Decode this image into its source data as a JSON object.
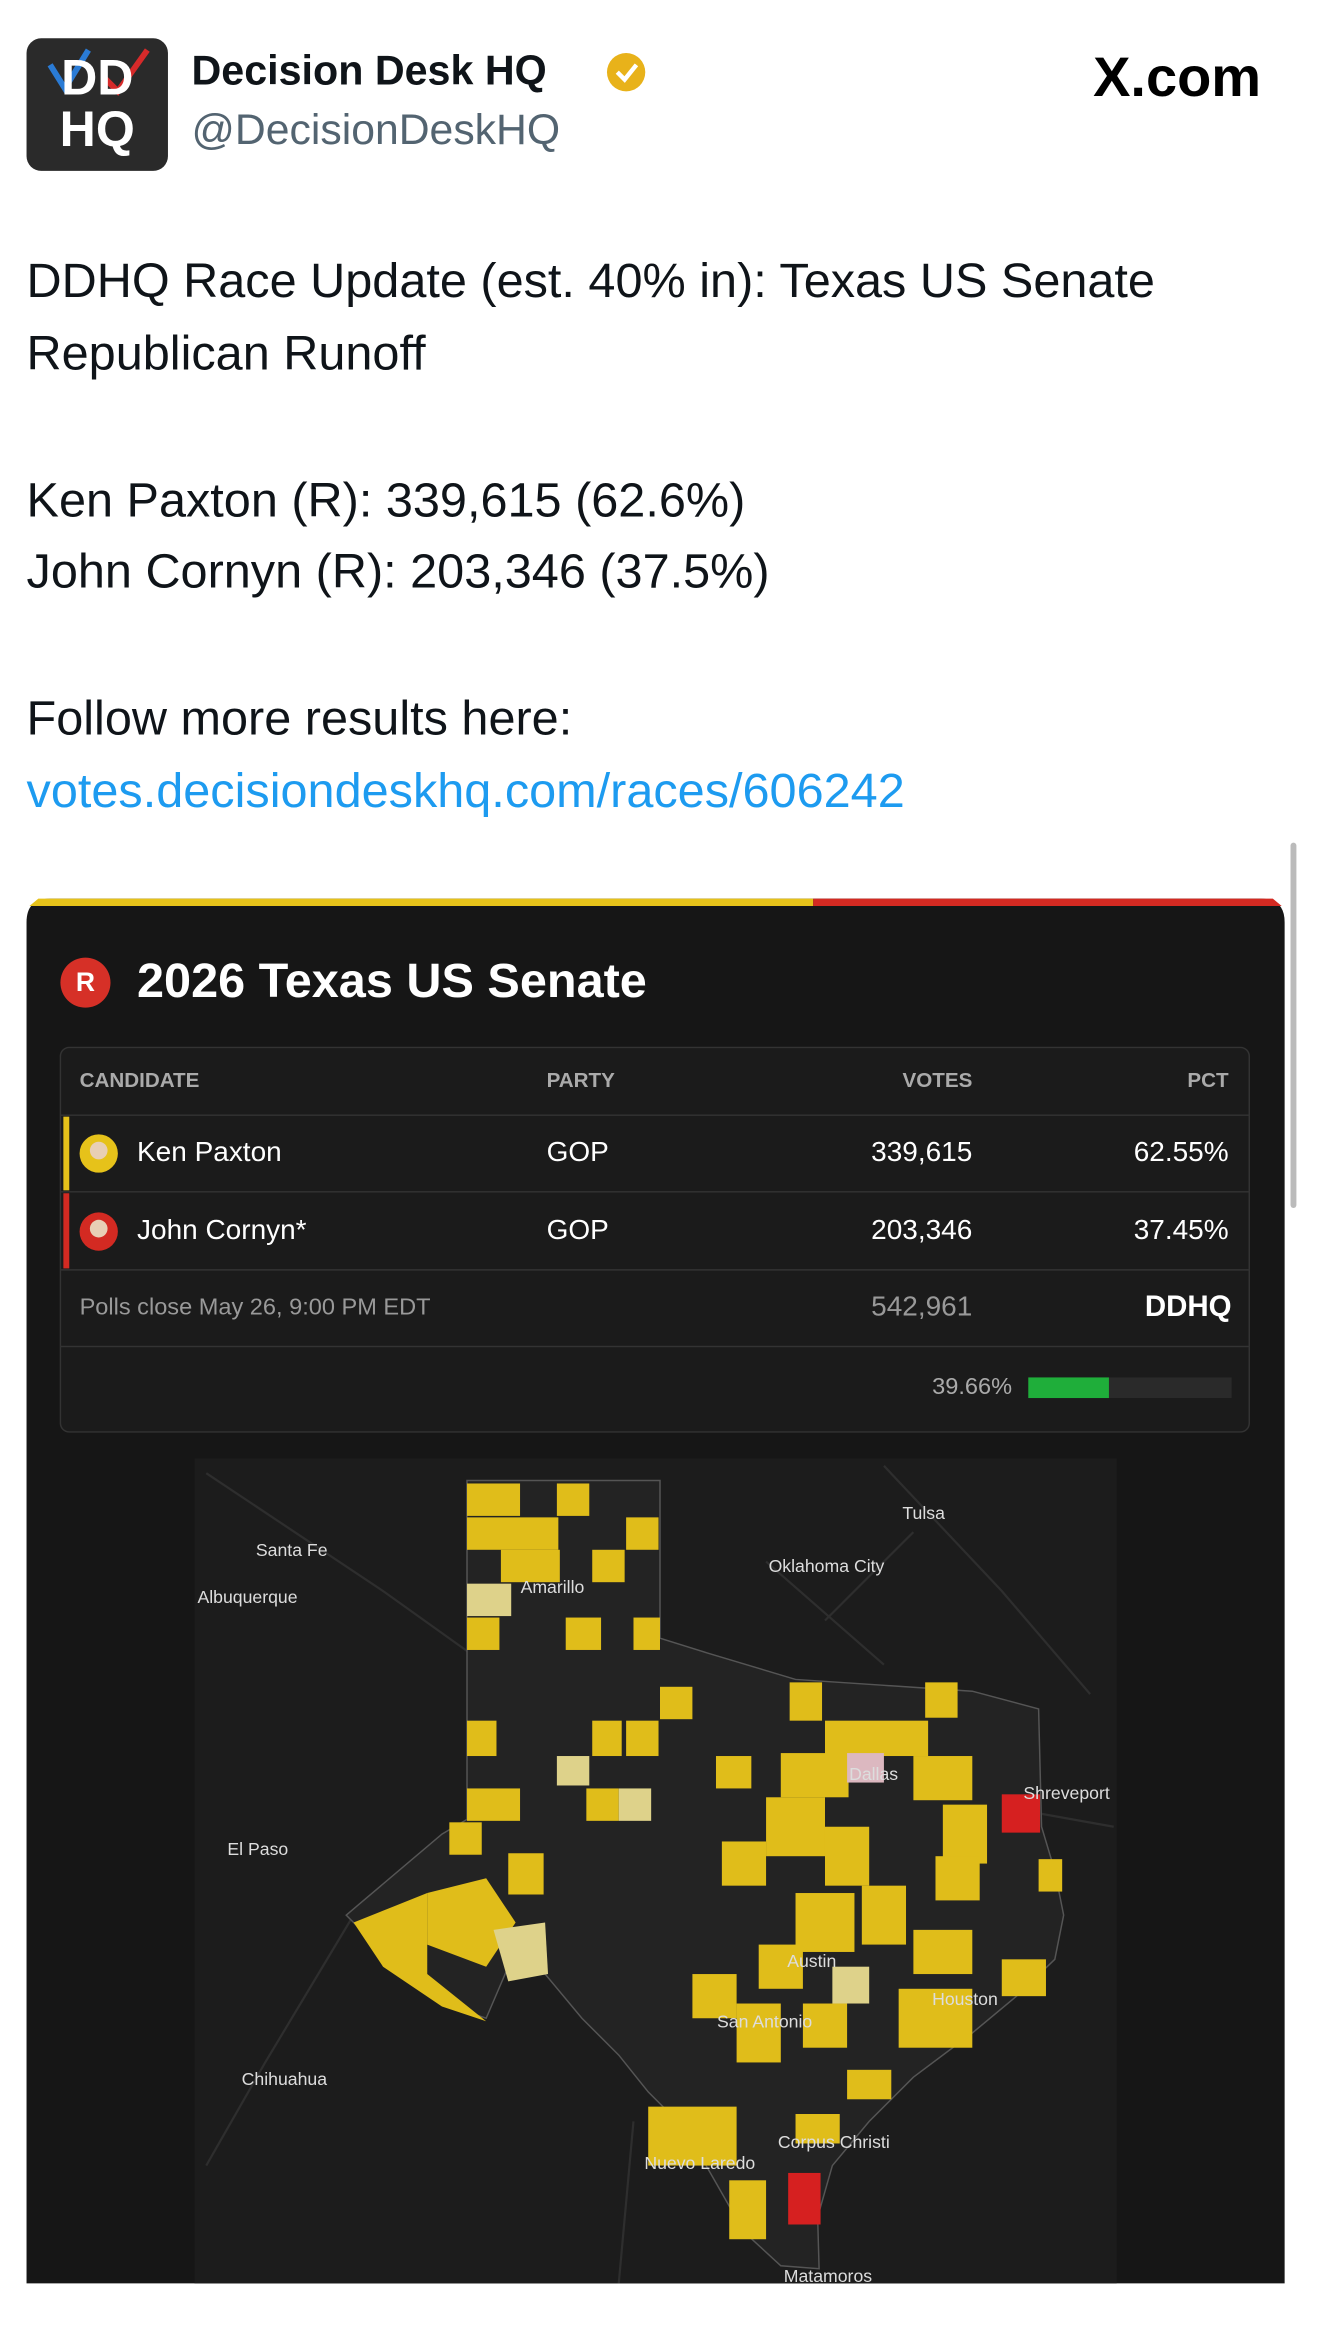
{
  "header": {
    "avatar_text": [
      "DD",
      "HQ"
    ],
    "name": "Decision Desk HQ",
    "handle": "@DecisionDeskHQ",
    "site": "X.com"
  },
  "tweet": {
    "lines": [
      "DDHQ Race Update (est. 40% in): Texas US Senate",
      "Republican Runoff",
      "Ken Paxton (R): 339,615 (62.6%)",
      "John Cornyn (R): 203,346 (37.5%)",
      "Follow more results here:"
    ],
    "link": "votes.decisiondeskhq.com/races/606242"
  },
  "card": {
    "badge": "R",
    "title": "2026 Texas US Senate",
    "table": {
      "columns": [
        "CANDIDATE",
        "PARTY",
        "VOTES",
        "PCT"
      ],
      "rows": [
        [
          "Ken Paxton",
          "GOP",
          "339,615",
          "62.55%"
        ],
        [
          "John Cornyn*",
          "GOP",
          "203,346",
          "37.45%"
        ]
      ],
      "footer": [
        "Polls close May 26, 9:00 PM EDT",
        "542,961",
        "DDHQ"
      ],
      "reporting": {
        "value": 39.66,
        "label": "39.66%"
      }
    },
    "map_labels": [
      "Santa Fe",
      "Albuquerque",
      "Amarillo",
      "Tulsa",
      "Oklahoma City",
      "Dallas",
      "Shreveport",
      "El Paso",
      "Austin",
      "Houston",
      "San Antonio",
      "Chihuahua",
      "Corpus Christi",
      "Nuevo Laredo",
      "Matamoros"
    ]
  }
}
